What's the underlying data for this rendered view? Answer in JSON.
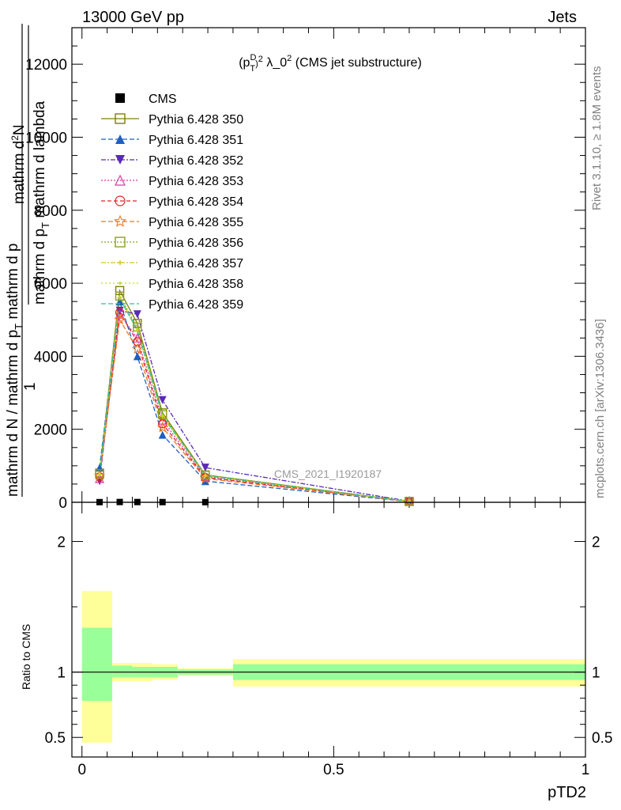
{
  "header": {
    "left": "13000 GeV pp",
    "right": "Jets"
  },
  "side_labels": {
    "rivet": "Rivet 3.1.10, ≥ 1.8M events",
    "mcplots": "mcplots.cern.ch [arXiv:1306.3436]"
  },
  "chart_data": [
    {
      "type": "line",
      "title_main": "(p",
      "title_sub": "T",
      "title_sup1": "D",
      "title_sup2": "2",
      "title_rest": " λ_0",
      "title_sup3": "2",
      "title_end": " (CMS jet substructure)",
      "watermark": "CMS_2021_I1920187",
      "ylabel": {
        "numerator": "1",
        "denominator": "mathrm d N / mathrm d p",
        "denominator_sub": "T",
        "denominator_end": " mathrm d p",
        "upper_num": "mathrm d",
        "upper_sup": "2",
        "upper_num_end": "N",
        "upper_den": "mathrm d p",
        "upper_den_sub": "T",
        "upper_den_end": " mathrm d lambda"
      },
      "xlim": [
        -0.02,
        1.0
      ],
      "ylim": [
        0,
        13000
      ],
      "yticks": [
        {
          "value": 0,
          "label": "0"
        },
        {
          "value": 2000,
          "label": "2000"
        },
        {
          "value": 4000,
          "label": "4000"
        },
        {
          "value": 6000,
          "label": "6000"
        },
        {
          "value": 8000,
          "label": "8000"
        },
        {
          "value": 10000,
          "label": "10000"
        },
        {
          "value": 12000,
          "label": "12000"
        }
      ],
      "x": [
        0.035,
        0.075,
        0.11,
        0.16,
        0.245,
        0.65
      ],
      "series": [
        {
          "name": "CMS",
          "color": "#000000",
          "dash": "none",
          "marker": "square-filled",
          "values": [
            5,
            8,
            7,
            5,
            4,
            1
          ]
        },
        {
          "name": "Pythia 6.428 350",
          "color": "#808000",
          "dash": "none",
          "marker": "square-open",
          "values": [
            800,
            5800,
            4900,
            2450,
            750,
            25
          ]
        },
        {
          "name": "Pythia 6.428 351",
          "color": "#1f5fbf",
          "dash": "6,3",
          "marker": "triangle-up-filled",
          "values": [
            950,
            5500,
            4000,
            1850,
            580,
            20
          ]
        },
        {
          "name": "Pythia 6.428 352",
          "color": "#5a2ab5",
          "dash": "6,2,2,2",
          "marker": "triangle-down-filled",
          "values": [
            580,
            5250,
            5150,
            2800,
            950,
            30
          ]
        },
        {
          "name": "Pythia 6.428 353",
          "color": "#d63fa0",
          "dash": "2,2",
          "marker": "triangle-up-open",
          "values": [
            650,
            5150,
            4500,
            2250,
            700,
            22
          ]
        },
        {
          "name": "Pythia 6.428 354",
          "color": "#e0202a",
          "dash": "5,3",
          "marker": "circle-open",
          "values": [
            700,
            5200,
            4400,
            2150,
            680,
            22
          ]
        },
        {
          "name": "Pythia 6.428 355",
          "color": "#f07820",
          "dash": "6,3",
          "marker": "star-open",
          "values": [
            720,
            5000,
            4200,
            2050,
            650,
            21
          ]
        },
        {
          "name": "Pythia 6.428 356",
          "color": "#8ca020",
          "dash": "2,2",
          "marker": "square-open",
          "values": [
            780,
            5650,
            4800,
            2400,
            740,
            24
          ]
        },
        {
          "name": "Pythia 6.428 357",
          "color": "#d8c020",
          "dash": "6,2,2,2",
          "marker": "cross-small",
          "values": [
            760,
            5600,
            4700,
            2350,
            730,
            24
          ]
        },
        {
          "name": "Pythia 6.428 358",
          "color": "#b8e020",
          "dash": "2,3",
          "marker": "dot-small",
          "values": [
            770,
            5620,
            4750,
            2380,
            735,
            24
          ]
        },
        {
          "name": "Pythia 6.428 359",
          "color": "#30c0a0",
          "dash": "6,3",
          "marker": "none",
          "values": [
            765,
            5580,
            4720,
            2370,
            732,
            24
          ]
        }
      ]
    },
    {
      "type": "area",
      "ylabel": "Ratio to CMS",
      "xlabel": "pTD2",
      "xlim": [
        -0.02,
        1.0
      ],
      "ylim": [
        0.35,
        2.3
      ],
      "xticks": [
        {
          "value": 0,
          "label": "0"
        },
        {
          "value": 0.5,
          "label": "0.5"
        },
        {
          "value": 1,
          "label": "1"
        }
      ],
      "yticks": [
        {
          "value": 0.5,
          "label": "0.5"
        },
        {
          "value": 1,
          "label": "1"
        },
        {
          "value": 2,
          "label": "2"
        }
      ],
      "bands": [
        {
          "x0": 0.0,
          "x1": 0.06,
          "green": [
            0.78,
            1.34
          ],
          "yellow": [
            0.46,
            1.62
          ]
        },
        {
          "x0": 0.06,
          "x1": 0.1,
          "green": [
            0.96,
            1.05
          ],
          "yellow": [
            0.93,
            1.07
          ]
        },
        {
          "x0": 0.1,
          "x1": 0.14,
          "green": [
            0.96,
            1.04
          ],
          "yellow": [
            0.93,
            1.07
          ]
        },
        {
          "x0": 0.14,
          "x1": 0.19,
          "green": [
            0.96,
            1.04
          ],
          "yellow": [
            0.94,
            1.06
          ]
        },
        {
          "x0": 0.19,
          "x1": 0.3,
          "green": [
            0.98,
            1.02
          ],
          "yellow": [
            0.97,
            1.03
          ]
        },
        {
          "x0": 0.3,
          "x1": 1.0,
          "green": [
            0.94,
            1.06
          ],
          "yellow": [
            0.89,
            1.1
          ]
        }
      ],
      "green_color": "#99ff99",
      "yellow_color": "#ffff99"
    }
  ]
}
